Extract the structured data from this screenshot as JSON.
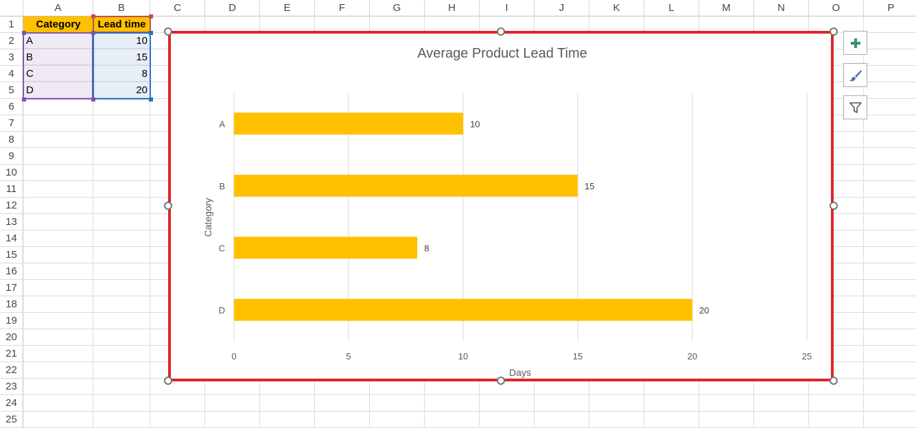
{
  "sheet": {
    "columns": [
      "A",
      "B",
      "C",
      "D",
      "E",
      "F",
      "G",
      "H",
      "I",
      "J",
      "K",
      "L",
      "M",
      "N",
      "O",
      "P"
    ],
    "rows": [
      "1",
      "2",
      "3",
      "4",
      "5",
      "6",
      "7",
      "8",
      "9",
      "10",
      "11",
      "12",
      "13",
      "14",
      "15",
      "16",
      "17",
      "18",
      "19",
      "20",
      "21",
      "22",
      "23",
      "24",
      "25"
    ],
    "table": {
      "headers": [
        "Category",
        "Lead time"
      ],
      "rows": [
        [
          "A",
          "10"
        ],
        [
          "B",
          "15"
        ],
        [
          "C",
          "8"
        ],
        [
          "D",
          "20"
        ]
      ]
    }
  },
  "chart_data": {
    "type": "bar",
    "orientation": "horizontal",
    "title": "Average Product Lead Time",
    "xlabel": "Days",
    "ylabel": "Category",
    "categories": [
      "A",
      "B",
      "C",
      "D"
    ],
    "values": [
      10,
      15,
      8,
      20
    ],
    "data_labels": [
      "10",
      "15",
      "8",
      "20"
    ],
    "xlim": [
      0,
      25
    ],
    "x_ticks": [
      "0",
      "5",
      "10",
      "15",
      "20",
      "25"
    ],
    "grid": true,
    "bar_color": "#ffc000"
  },
  "chart_tools": {
    "add_element": "chart-elements-icon",
    "styles": "chart-styles-icon",
    "filters": "chart-filters-icon"
  },
  "colors": {
    "header_fill": "#ffc000",
    "chart_border": "#e1222a",
    "bar": "#ffc000"
  }
}
